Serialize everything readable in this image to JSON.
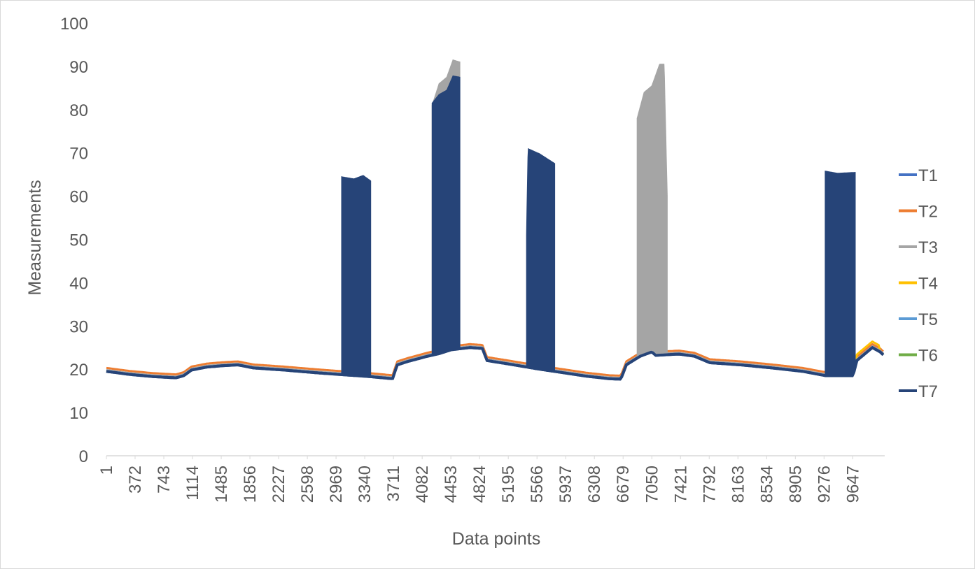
{
  "chart_data": {
    "type": "line",
    "title": "",
    "xlabel": "Data points",
    "ylabel": "Measurements",
    "ylim": [
      0,
      100
    ],
    "xlim": [
      1,
      10000
    ],
    "y_ticks": [
      "0",
      "10",
      "20",
      "30",
      "40",
      "50",
      "60",
      "70",
      "80",
      "90",
      "100"
    ],
    "x_ticks": [
      "1",
      "372",
      "743",
      "1114",
      "1485",
      "1856",
      "2227",
      "2598",
      "2969",
      "3340",
      "3711",
      "4082",
      "4453",
      "4824",
      "5195",
      "5566",
      "5937",
      "6308",
      "6679",
      "7050",
      "7421",
      "7792",
      "8163",
      "8534",
      "8905",
      "9276",
      "9647"
    ],
    "grid": false,
    "legend_position": "right",
    "baseline": [
      [
        1,
        19.5
      ],
      [
        300,
        18.8
      ],
      [
        600,
        18.3
      ],
      [
        900,
        18.0
      ],
      [
        1000,
        18.5
      ],
      [
        1100,
        19.8
      ],
      [
        1300,
        20.5
      ],
      [
        1500,
        20.8
      ],
      [
        1700,
        21.0
      ],
      [
        1900,
        20.3
      ],
      [
        2300,
        19.8
      ],
      [
        2700,
        19.2
      ],
      [
        3000,
        18.8
      ],
      [
        3400,
        18.3
      ],
      [
        3700,
        17.8
      ],
      [
        3760,
        21.0
      ],
      [
        3900,
        21.8
      ],
      [
        4150,
        23.0
      ],
      [
        4300,
        23.6
      ],
      [
        4460,
        24.5
      ],
      [
        4700,
        25.0
      ],
      [
        4860,
        24.8
      ],
      [
        4920,
        22.0
      ],
      [
        5200,
        21.2
      ],
      [
        5600,
        20.0
      ],
      [
        5900,
        19.2
      ],
      [
        6200,
        18.4
      ],
      [
        6500,
        17.8
      ],
      [
        6650,
        17.7
      ],
      [
        6720,
        21.0
      ],
      [
        6900,
        23.0
      ],
      [
        7050,
        24.0
      ],
      [
        7100,
        23.2
      ],
      [
        7400,
        23.5
      ],
      [
        7600,
        23.0
      ],
      [
        7800,
        21.5
      ],
      [
        8200,
        21.0
      ],
      [
        8600,
        20.3
      ],
      [
        9000,
        19.5
      ],
      [
        9300,
        18.5
      ],
      [
        9650,
        18.5
      ],
      [
        9700,
        22.0
      ],
      [
        9800,
        23.5
      ],
      [
        9900,
        25.0
      ],
      [
        10000,
        24.0
      ],
      [
        10060,
        23.0
      ]
    ],
    "series": [
      {
        "name": "T1",
        "color": "#4472C4",
        "offset": 0.0
      },
      {
        "name": "T2",
        "color": "#ED7D31",
        "offset": 0.8
      },
      {
        "name": "T3",
        "color": "#A5A5A5",
        "offset": 0.3
      },
      {
        "name": "T4",
        "color": "#FFC000",
        "offset": 0.2
      },
      {
        "name": "T5",
        "color": "#5B9BD5",
        "offset": 0.1
      },
      {
        "name": "T6",
        "color": "#70AD47",
        "offset": 0.0
      },
      {
        "name": "T7",
        "color": "#264478",
        "offset": 0.0
      }
    ],
    "spikes": [
      {
        "series": "T7",
        "x_start": 3040,
        "x_end": 3420,
        "peaks": [
          [
            3040,
            64.5
          ],
          [
            3200,
            64.0
          ],
          [
            3320,
            64.8
          ],
          [
            3420,
            63.5
          ]
        ]
      },
      {
        "series": "T3",
        "x_start": 4210,
        "x_end": 4575,
        "peaks": [
          [
            4210,
            81.0
          ],
          [
            4300,
            86.0
          ],
          [
            4400,
            87.5
          ],
          [
            4480,
            91.5
          ],
          [
            4575,
            91.0
          ]
        ]
      },
      {
        "series": "T7",
        "x_start": 4210,
        "x_end": 4575,
        "peaks": [
          [
            4210,
            81.5
          ],
          [
            4300,
            83.5
          ],
          [
            4400,
            84.5
          ],
          [
            4480,
            87.8
          ],
          [
            4575,
            87.5
          ]
        ]
      },
      {
        "series": "T7",
        "x_start": 5430,
        "x_end": 5800,
        "peaks": [
          [
            5430,
            51.0
          ],
          [
            5450,
            71.0
          ],
          [
            5600,
            69.8
          ],
          [
            5800,
            67.5
          ]
        ]
      },
      {
        "series": "T3",
        "x_start": 6860,
        "x_end": 7250,
        "peaks": [
          [
            6860,
            78.0
          ],
          [
            6950,
            84.0
          ],
          [
            7050,
            85.5
          ],
          [
            7150,
            90.5
          ],
          [
            7210,
            90.5
          ],
          [
            7250,
            60.0
          ]
        ]
      },
      {
        "series": "T7",
        "x_start": 9290,
        "x_end": 9680,
        "peaks": [
          [
            9290,
            65.8
          ],
          [
            9450,
            65.3
          ],
          [
            9680,
            65.5
          ]
        ]
      }
    ]
  }
}
